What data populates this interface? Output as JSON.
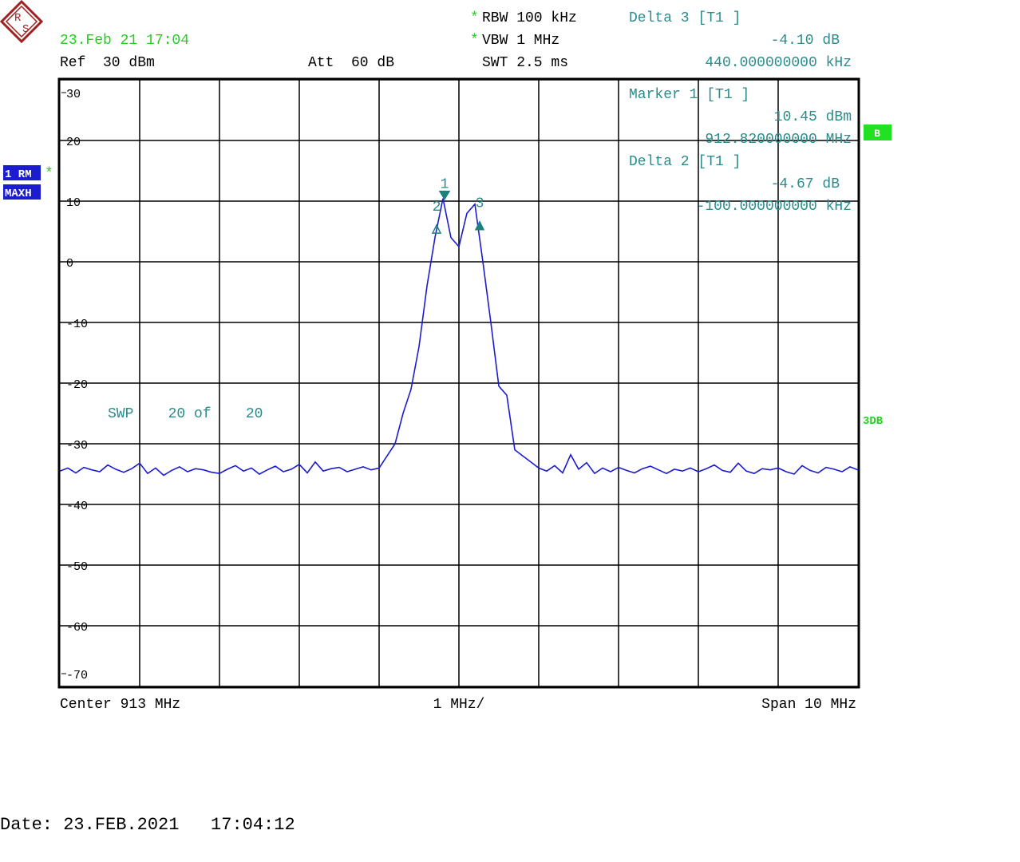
{
  "chart_data": {
    "type": "line",
    "logo": [
      "R",
      "S"
    ],
    "timestamp": "23.Feb 21 17:04",
    "ref": "Ref  30 dBm",
    "att": "Att  60 dB",
    "rbw_star": "*",
    "rbw": "RBW 100 kHz",
    "vbw_star": "*",
    "vbw": "VBW 1 MHz",
    "swt": "SWT 2.5 ms",
    "delta3": [
      "Delta 3 [T1 ]",
      "-4.10 dB",
      "440.000000000 kHz"
    ],
    "marker1": [
      "Marker 1 [T1 ]",
      "10.45 dBm",
      "912.820000000 MHz"
    ],
    "delta2": [
      "Delta 2 [T1 ]",
      "-4.67 dB",
      "-100.000000000 kHz"
    ],
    "trace_label": [
      "1 RM",
      "MAXH"
    ],
    "trace_star": "*",
    "side_b": "B",
    "side_3db": "3DB",
    "sweep": "SWP    20 of    20",
    "center": "Center 913 MHz",
    "div": "1 MHz/",
    "span": "Span 10 MHz",
    "date": "Date: 23.FEB.2021   17:04:12",
    "color": "#1c1ccf",
    "marker_color": "#1a8080",
    "xlim": [
      908,
      918
    ],
    "ylim": [
      -70,
      30
    ],
    "yticks": [
      30,
      20,
      10,
      0,
      -10,
      -20,
      -30,
      -40,
      -50,
      -60,
      -70
    ],
    "grid": true,
    "x": [
      908.0,
      908.1,
      908.2,
      908.3,
      908.4,
      908.5,
      908.6,
      908.7,
      908.8,
      908.9,
      909.0,
      909.1,
      909.2,
      909.3,
      909.4,
      909.5,
      909.6,
      909.7,
      909.8,
      909.9,
      910.0,
      910.1,
      910.2,
      910.3,
      910.4,
      910.5,
      910.6,
      910.7,
      910.8,
      910.9,
      911.0,
      911.1,
      911.2,
      911.3,
      911.4,
      911.5,
      911.6,
      911.7,
      911.8,
      911.9,
      912.0,
      912.1,
      912.2,
      912.3,
      912.4,
      912.5,
      912.6,
      912.7,
      912.8,
      912.9,
      913.0,
      913.1,
      913.2,
      913.3,
      913.4,
      913.5,
      913.6,
      913.7,
      913.8,
      913.9,
      914.0,
      914.1,
      914.2,
      914.3,
      914.4,
      914.5,
      914.6,
      914.7,
      914.8,
      914.9,
      915.0,
      915.1,
      915.2,
      915.3,
      915.4,
      915.5,
      915.6,
      915.7,
      915.8,
      915.9,
      916.0,
      916.1,
      916.2,
      916.3,
      916.4,
      916.5,
      916.6,
      916.7,
      916.8,
      916.9,
      917.0,
      917.1,
      917.2,
      917.3,
      917.4,
      917.5,
      917.6,
      917.7,
      917.8,
      917.9,
      918.0
    ],
    "values": [
      -34.5,
      -34.0,
      -34.8,
      -33.9,
      -34.3,
      -34.6,
      -33.5,
      -34.2,
      -34.7,
      -34.1,
      -33.2,
      -34.9,
      -34.0,
      -35.2,
      -34.4,
      -33.8,
      -34.6,
      -34.1,
      -34.3,
      -34.7,
      -34.9,
      -34.2,
      -33.6,
      -34.5,
      -34.0,
      -35.0,
      -34.3,
      -33.7,
      -34.6,
      -34.2,
      -33.4,
      -34.8,
      -33.0,
      -34.5,
      -34.1,
      -33.9,
      -34.6,
      -34.2,
      -33.8,
      -34.3,
      -34.0,
      -32.0,
      -30.0,
      -25.0,
      -21.0,
      -14.0,
      -4.0,
      4.0,
      10.45,
      4.0,
      2.5,
      8.0,
      9.5,
      0.0,
      -10.0,
      -20.5,
      -22.0,
      -31.0,
      -32.0,
      -33.0,
      -34.0,
      -34.5,
      -33.6,
      -34.8,
      -31.8,
      -34.2,
      -33.1,
      -34.9,
      -34.0,
      -34.6,
      -33.9,
      -34.4,
      -34.8,
      -34.1,
      -33.7,
      -34.3,
      -34.9,
      -34.2,
      -34.5,
      -34.0,
      -34.6,
      -34.1,
      -33.5,
      -34.4,
      -34.7,
      -33.2,
      -34.5,
      -34.9,
      -34.1,
      -34.3,
      -34.0,
      -34.6,
      -35.0,
      -33.6,
      -34.4,
      -34.8,
      -33.9,
      -34.2,
      -34.6,
      -33.8,
      -34.3
    ],
    "markers": [
      {
        "label": "1",
        "x": 912.82,
        "y": 10.45,
        "symbol": "down-filled"
      },
      {
        "label": "2",
        "x": 912.72,
        "y": 5.78,
        "symbol": "up-open"
      },
      {
        "label": "3",
        "x": 913.26,
        "y": 6.35,
        "symbol": "up-filled"
      }
    ]
  }
}
